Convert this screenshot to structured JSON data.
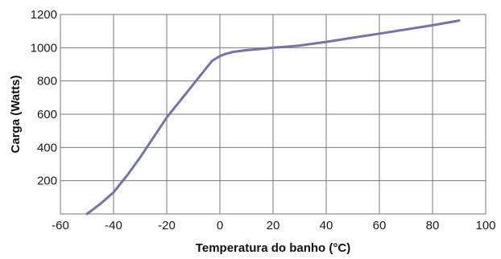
{
  "chart_data": {
    "type": "line",
    "title": "",
    "xlabel": "Temperatura do banho (°C)",
    "ylabel": "Carga (Watts)",
    "xlim": [
      -60,
      100
    ],
    "ylim": [
      0,
      1200
    ],
    "x_ticks": [
      -60,
      -40,
      -20,
      0,
      20,
      40,
      60,
      80,
      100
    ],
    "y_ticks": [
      200,
      400,
      600,
      800,
      1000,
      1200
    ],
    "grid": true,
    "legend": "none",
    "series": [
      {
        "color": "#7474a6",
        "x": [
          -50,
          -45,
          -40,
          -35,
          -30,
          -25,
          -20,
          -15,
          -10,
          -7,
          -5,
          -3,
          0,
          2,
          5,
          10,
          15,
          20,
          25,
          30,
          40,
          50,
          60,
          70,
          80,
          90
        ],
        "y": [
          0,
          60,
          130,
          230,
          340,
          460,
          580,
          680,
          780,
          840,
          880,
          920,
          950,
          962,
          975,
          985,
          992,
          1000,
          1006,
          1013,
          1035,
          1060,
          1085,
          1110,
          1135,
          1163
        ]
      }
    ]
  }
}
